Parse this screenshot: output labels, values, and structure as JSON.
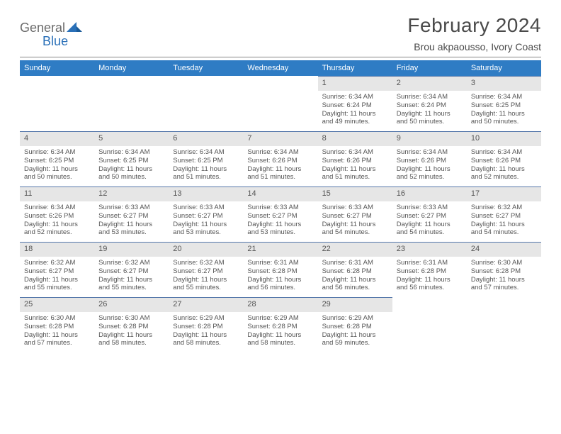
{
  "brand": {
    "text1": "General",
    "text2": "Blue"
  },
  "title": "February 2024",
  "location": "Brou akpaousso, Ivory Coast",
  "colors": {
    "headerBg": "#2f7cc4",
    "headerText": "#ffffff",
    "dayNumBg": "#e6e6e6",
    "dayBorder": "#5577aa",
    "bodyText": "#555555",
    "logoBlue": "#2a70b8"
  },
  "dayNames": [
    "Sunday",
    "Monday",
    "Tuesday",
    "Wednesday",
    "Thursday",
    "Friday",
    "Saturday"
  ],
  "weeks": [
    [
      null,
      null,
      null,
      null,
      {
        "n": "1",
        "sr": "6:34 AM",
        "ss": "6:24 PM",
        "dl": "11 hours and 49 minutes."
      },
      {
        "n": "2",
        "sr": "6:34 AM",
        "ss": "6:24 PM",
        "dl": "11 hours and 50 minutes."
      },
      {
        "n": "3",
        "sr": "6:34 AM",
        "ss": "6:25 PM",
        "dl": "11 hours and 50 minutes."
      }
    ],
    [
      {
        "n": "4",
        "sr": "6:34 AM",
        "ss": "6:25 PM",
        "dl": "11 hours and 50 minutes."
      },
      {
        "n": "5",
        "sr": "6:34 AM",
        "ss": "6:25 PM",
        "dl": "11 hours and 50 minutes."
      },
      {
        "n": "6",
        "sr": "6:34 AM",
        "ss": "6:25 PM",
        "dl": "11 hours and 51 minutes."
      },
      {
        "n": "7",
        "sr": "6:34 AM",
        "ss": "6:26 PM",
        "dl": "11 hours and 51 minutes."
      },
      {
        "n": "8",
        "sr": "6:34 AM",
        "ss": "6:26 PM",
        "dl": "11 hours and 51 minutes."
      },
      {
        "n": "9",
        "sr": "6:34 AM",
        "ss": "6:26 PM",
        "dl": "11 hours and 52 minutes."
      },
      {
        "n": "10",
        "sr": "6:34 AM",
        "ss": "6:26 PM",
        "dl": "11 hours and 52 minutes."
      }
    ],
    [
      {
        "n": "11",
        "sr": "6:34 AM",
        "ss": "6:26 PM",
        "dl": "11 hours and 52 minutes."
      },
      {
        "n": "12",
        "sr": "6:33 AM",
        "ss": "6:27 PM",
        "dl": "11 hours and 53 minutes."
      },
      {
        "n": "13",
        "sr": "6:33 AM",
        "ss": "6:27 PM",
        "dl": "11 hours and 53 minutes."
      },
      {
        "n": "14",
        "sr": "6:33 AM",
        "ss": "6:27 PM",
        "dl": "11 hours and 53 minutes."
      },
      {
        "n": "15",
        "sr": "6:33 AM",
        "ss": "6:27 PM",
        "dl": "11 hours and 54 minutes."
      },
      {
        "n": "16",
        "sr": "6:33 AM",
        "ss": "6:27 PM",
        "dl": "11 hours and 54 minutes."
      },
      {
        "n": "17",
        "sr": "6:32 AM",
        "ss": "6:27 PM",
        "dl": "11 hours and 54 minutes."
      }
    ],
    [
      {
        "n": "18",
        "sr": "6:32 AM",
        "ss": "6:27 PM",
        "dl": "11 hours and 55 minutes."
      },
      {
        "n": "19",
        "sr": "6:32 AM",
        "ss": "6:27 PM",
        "dl": "11 hours and 55 minutes."
      },
      {
        "n": "20",
        "sr": "6:32 AM",
        "ss": "6:27 PM",
        "dl": "11 hours and 55 minutes."
      },
      {
        "n": "21",
        "sr": "6:31 AM",
        "ss": "6:28 PM",
        "dl": "11 hours and 56 minutes."
      },
      {
        "n": "22",
        "sr": "6:31 AM",
        "ss": "6:28 PM",
        "dl": "11 hours and 56 minutes."
      },
      {
        "n": "23",
        "sr": "6:31 AM",
        "ss": "6:28 PM",
        "dl": "11 hours and 56 minutes."
      },
      {
        "n": "24",
        "sr": "6:30 AM",
        "ss": "6:28 PM",
        "dl": "11 hours and 57 minutes."
      }
    ],
    [
      {
        "n": "25",
        "sr": "6:30 AM",
        "ss": "6:28 PM",
        "dl": "11 hours and 57 minutes."
      },
      {
        "n": "26",
        "sr": "6:30 AM",
        "ss": "6:28 PM",
        "dl": "11 hours and 58 minutes."
      },
      {
        "n": "27",
        "sr": "6:29 AM",
        "ss": "6:28 PM",
        "dl": "11 hours and 58 minutes."
      },
      {
        "n": "28",
        "sr": "6:29 AM",
        "ss": "6:28 PM",
        "dl": "11 hours and 58 minutes."
      },
      {
        "n": "29",
        "sr": "6:29 AM",
        "ss": "6:28 PM",
        "dl": "11 hours and 59 minutes."
      },
      null,
      null
    ]
  ],
  "labels": {
    "sunrise": "Sunrise:",
    "sunset": "Sunset:",
    "daylight": "Daylight:"
  }
}
